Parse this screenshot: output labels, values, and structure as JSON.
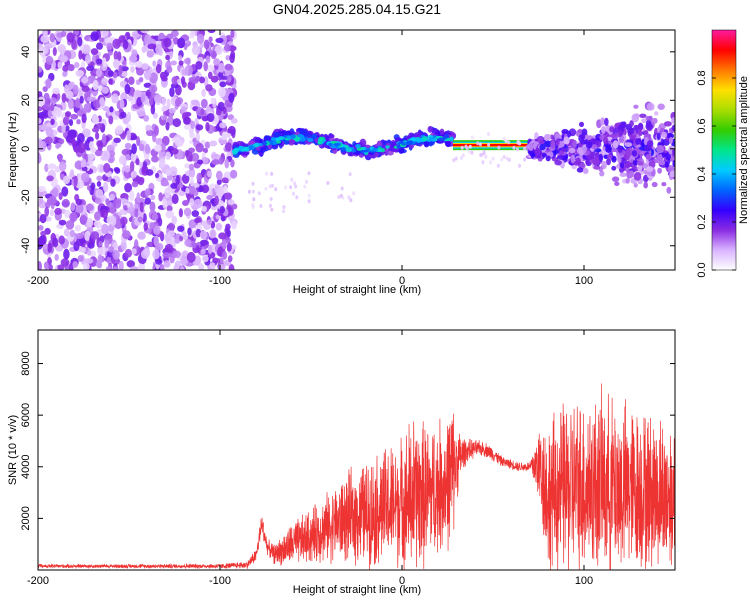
{
  "figure": {
    "title": "GN04.2025.285.04.15.G21"
  },
  "chart_data": [
    {
      "type": "heatmap",
      "title": "GN04.2025.285.04.15.G21",
      "xlabel": "Height of straight line (km)",
      "ylabel": "Frequency (Hz)",
      "xlim": [
        -200,
        150
      ],
      "ylim": [
        -50,
        49
      ],
      "xticks": [
        -200,
        -100,
        0,
        100
      ],
      "yticks": [
        -40,
        -20,
        0,
        20,
        40
      ],
      "xtick_labels": [
        "-200",
        "-100",
        "0",
        "100"
      ],
      "ytick_labels": [
        "-40",
        "-20",
        "0",
        "20",
        "40"
      ],
      "colorbar": {
        "label": "Normalized spectral amplitude",
        "range": [
          0,
          1
        ],
        "ticks": [
          0.0,
          0.2,
          0.4,
          0.6,
          0.8
        ],
        "tick_labels": [
          "0.0",
          "0.2",
          "0.4",
          "0.6",
          "0.8"
        ],
        "colors": [
          "#ffffff",
          "#d9b3ff",
          "#8a2be2",
          "#3300ff",
          "#0066ff",
          "#00ccff",
          "#00e68a",
          "#33cc00",
          "#aadd00",
          "#ffe000",
          "#ff7700",
          "#ff0000",
          "#ff1aa0"
        ]
      },
      "regions": [
        {
          "name": "noise",
          "x_range": [
            -200,
            -92
          ],
          "freq_center": 0,
          "freq_spread": 49,
          "amplitude": 0.15
        },
        {
          "name": "signal-track",
          "x_range": [
            -92,
            28
          ],
          "freq_center": 2,
          "freq_spread": 5,
          "amplitude": 0.4
        },
        {
          "name": "constant-segment",
          "x_range": [
            28,
            70
          ],
          "freq_center": 1.5,
          "freq_spread": 1,
          "amplitude": 0.8
        },
        {
          "name": "scatter-tail",
          "x_range": [
            70,
            150
          ],
          "freq_center": 0,
          "freq_spread": 20,
          "amplitude": 0.2
        }
      ]
    },
    {
      "type": "line",
      "xlabel": "Height of straight line (km)",
      "ylabel": "SNR (10 * v/v)",
      "xlim": [
        -200,
        150
      ],
      "ylim": [
        0,
        9300
      ],
      "xticks": [
        -200,
        -100,
        0,
        100
      ],
      "yticks": [
        2000,
        4000,
        6000,
        8000
      ],
      "xtick_labels": [
        "-200",
        "-100",
        "0",
        "100"
      ],
      "ytick_labels": [
        "2000",
        "4000",
        "6000",
        "8000"
      ],
      "series": [
        {
          "name": "SNR",
          "color": "#ee3333",
          "x": [
            -200,
            -150,
            -100,
            -85,
            -80,
            -77,
            -74,
            -70,
            -60,
            -50,
            -40,
            -30,
            -20,
            -10,
            0,
            5,
            10,
            15,
            20,
            25,
            27,
            30,
            35,
            40,
            45,
            50,
            55,
            60,
            65,
            70,
            75,
            78,
            80,
            85,
            90,
            100,
            110,
            120,
            130,
            140,
            150
          ],
          "base": [
            150,
            150,
            150,
            200,
            600,
            1800,
            900,
            600,
            1000,
            1300,
            1700,
            2000,
            2200,
            2400,
            2600,
            2800,
            2900,
            3000,
            3200,
            3400,
            3600,
            4200,
            4600,
            4700,
            4700,
            4500,
            4200,
            4100,
            4000,
            4000,
            4100,
            3500,
            2800,
            3000,
            3200,
            3300,
            3300,
            3200,
            3100,
            3000,
            2900
          ],
          "amp": [
            80,
            80,
            100,
            150,
            300,
            500,
            300,
            400,
            900,
            1100,
            1400,
            1800,
            2100,
            2400,
            2600,
            3300,
            3000,
            2800,
            2700,
            2600,
            3300,
            1500,
            500,
            350,
            300,
            300,
            200,
            200,
            200,
            200,
            1500,
            2500,
            3000,
            3300,
            3500,
            3600,
            3600,
            3500,
            3300,
            3100,
            3000
          ]
        }
      ]
    }
  ]
}
